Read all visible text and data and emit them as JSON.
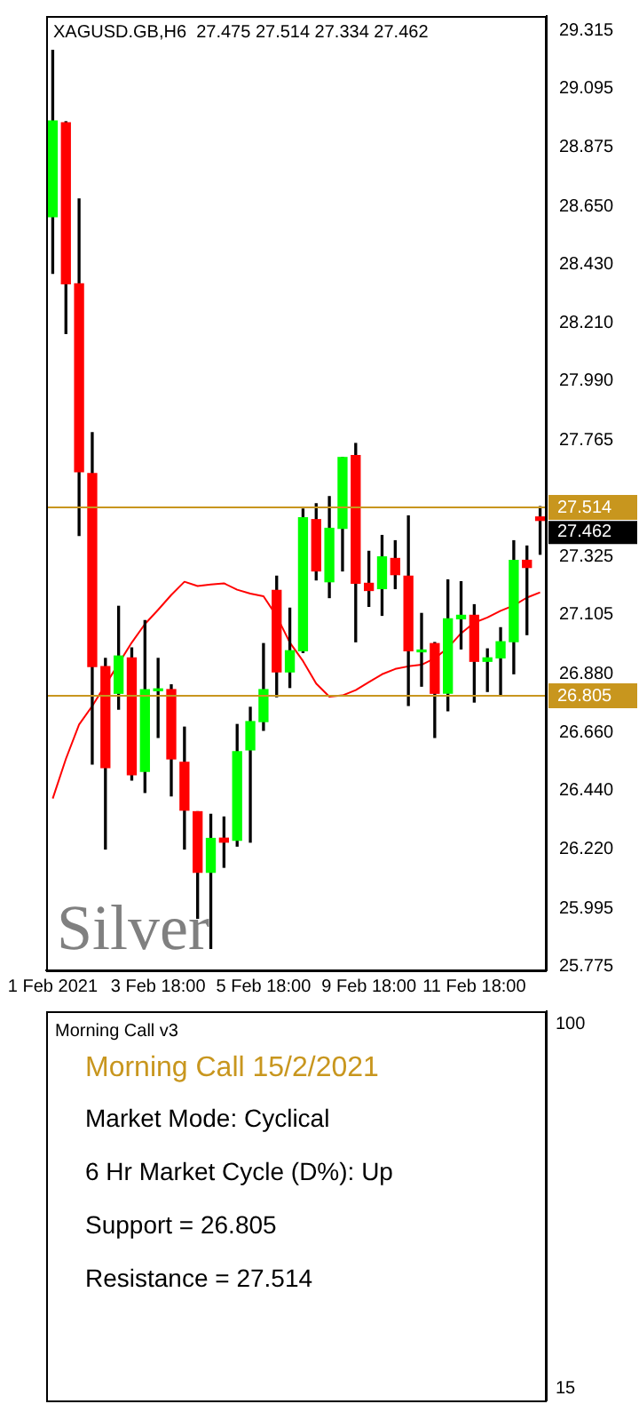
{
  "chart_data": [
    {
      "type": "candlestick",
      "title": "XAGUSD.GB,H6  27.475 27.514 27.334 27.462",
      "categories": [
        "1 Feb 2021",
        null,
        null,
        null,
        null,
        null,
        null,
        null,
        "3 Feb 18:00",
        null,
        null,
        null,
        null,
        null,
        null,
        null,
        "5 Feb 18:00",
        null,
        null,
        null,
        null,
        null,
        null,
        null,
        "9 Feb 18:00",
        null,
        null,
        null,
        null,
        null,
        null,
        null,
        "11 Feb 18:00",
        null,
        null,
        null,
        null,
        null
      ],
      "ohlc": [
        [
          28.611,
          29.24,
          28.397,
          28.973
        ],
        [
          28.966,
          28.97,
          28.169,
          28.357
        ],
        [
          28.357,
          28.678,
          27.405,
          27.646
        ],
        [
          27.639,
          27.794,
          26.54,
          26.909
        ],
        [
          26.909,
          26.94,
          26.219,
          26.527
        ],
        [
          26.808,
          27.137,
          26.748,
          26.949
        ],
        [
          26.942,
          26.98,
          26.48,
          26.5
        ],
        [
          26.513,
          27.083,
          26.433,
          26.822
        ],
        [
          26.818,
          26.94,
          26.641,
          26.822
        ],
        [
          26.822,
          26.84,
          26.42,
          26.56
        ],
        [
          26.547,
          26.68,
          26.219,
          26.366
        ],
        [
          26.36,
          26.36,
          25.957,
          26.131
        ],
        [
          26.131,
          26.35,
          25.843,
          26.259
        ],
        [
          26.26,
          26.34,
          26.15,
          26.245
        ],
        [
          26.252,
          26.69,
          26.23,
          26.587
        ],
        [
          26.594,
          26.755,
          26.245,
          26.701
        ],
        [
          26.701,
          26.996,
          26.668,
          26.822
        ],
        [
          27.197,
          27.251,
          26.795,
          26.889
        ],
        [
          26.889,
          27.13,
          26.83,
          26.969
        ],
        [
          26.969,
          27.505,
          26.962,
          27.472
        ],
        [
          27.465,
          27.525,
          27.237,
          27.271
        ],
        [
          27.23,
          27.552,
          27.17,
          27.432
        ],
        [
          27.432,
          27.7,
          27.271,
          27.7
        ],
        [
          27.707,
          27.753,
          27.003,
          27.224
        ],
        [
          27.224,
          27.345,
          27.137,
          27.197
        ],
        [
          27.204,
          27.405,
          27.103,
          27.324
        ],
        [
          27.318,
          27.385,
          27.204,
          27.257
        ],
        [
          27.251,
          27.479,
          26.762,
          26.969
        ],
        [
          26.965,
          27.11,
          26.835,
          26.97
        ],
        [
          26.996,
          27.0,
          26.641,
          26.808
        ],
        [
          26.808,
          27.237,
          26.742,
          27.09
        ],
        [
          27.09,
          27.23,
          26.976,
          27.103
        ],
        [
          27.103,
          27.143,
          26.775,
          26.929
        ],
        [
          26.929,
          26.976,
          26.815,
          26.942
        ],
        [
          26.942,
          27.056,
          26.8,
          27.003
        ],
        [
          27.003,
          27.385,
          26.882,
          27.311
        ],
        [
          27.311,
          27.365,
          27.03,
          27.284
        ],
        [
          27.475,
          27.514,
          27.334,
          27.462
        ]
      ],
      "colors": [
        "#00ff00",
        "#ff0000",
        "#ff0000",
        "#ff0000",
        "#ff0000",
        "#00ff00",
        "#ff0000",
        "#00ff00",
        "#00ff00",
        "#ff0000",
        "#ff0000",
        "#ff0000",
        "#00ff00",
        "#ff0000",
        "#00ff00",
        "#00ff00",
        "#00ff00",
        "#ff0000",
        "#00ff00",
        "#00ff00",
        "#ff0000",
        "#00ff00",
        "#00ff00",
        "#ff0000",
        "#ff0000",
        "#00ff00",
        "#ff0000",
        "#ff0000",
        "#00ff00",
        "#ff0000",
        "#00ff00",
        "#00ff00",
        "#ff0000",
        "#00ff00",
        "#00ff00",
        "#00ff00",
        "#ff0000",
        "#ff0000"
      ],
      "series": [
        {
          "type": "line",
          "color": "#ff0000",
          "values": [
            26.41,
            26.56,
            26.69,
            26.76,
            26.84,
            26.92,
            27.0,
            27.07,
            27.124,
            27.18,
            27.23,
            27.214,
            27.22,
            27.224,
            27.2,
            27.185,
            27.175,
            27.1,
            27.0,
            26.93,
            26.845,
            26.795,
            26.8,
            26.82,
            26.85,
            26.88,
            26.9,
            26.91,
            26.916,
            26.94,
            26.98,
            27.035,
            27.075,
            27.095,
            27.12,
            27.14,
            27.17,
            27.19
          ]
        }
      ],
      "ylim": [
        25.76,
        29.37
      ],
      "yticks": [
        {
          "value": 25.775,
          "label": "25.775"
        },
        {
          "value": 25.995,
          "label": "25.995"
        },
        {
          "value": 26.22,
          "label": "26.220"
        },
        {
          "value": 26.44,
          "label": "26.440"
        },
        {
          "value": 26.66,
          "label": "26.660"
        },
        {
          "value": 26.88,
          "label": "26.880"
        },
        {
          "value": 27.105,
          "label": "27.105"
        },
        {
          "value": 27.325,
          "label": "27.325"
        },
        {
          "value": 27.765,
          "label": "27.765"
        },
        {
          "value": 27.99,
          "label": "27.990"
        },
        {
          "value": 28.21,
          "label": "28.210"
        },
        {
          "value": 28.43,
          "label": "28.430"
        },
        {
          "value": 28.65,
          "label": "28.650"
        },
        {
          "value": 28.875,
          "label": "28.875"
        },
        {
          "value": 29.095,
          "label": "29.095"
        },
        {
          "value": 29.315,
          "label": "29.315"
        }
      ],
      "ref_lines": [
        {
          "axis": "y",
          "value": 27.514,
          "label": "27.514",
          "color": "#c8961e"
        },
        {
          "axis": "y",
          "value": 26.805,
          "label": "26.805",
          "color": "#c8961e"
        }
      ],
      "annotations": [
        "Silver",
        "27.462"
      ],
      "marker": "none",
      "line_style": "solid",
      "grid": false,
      "legend": false
    },
    {
      "type": "other",
      "title": "Morning Call v3",
      "subtitle": "Morning Call 15/2/2021",
      "annotations": [
        "Market Mode: Cyclical",
        "6 Hr Market Cycle (D%): Up",
        "Support = 26.805",
        "Resistance = 27.514",
        "100",
        "15"
      ]
    }
  ]
}
